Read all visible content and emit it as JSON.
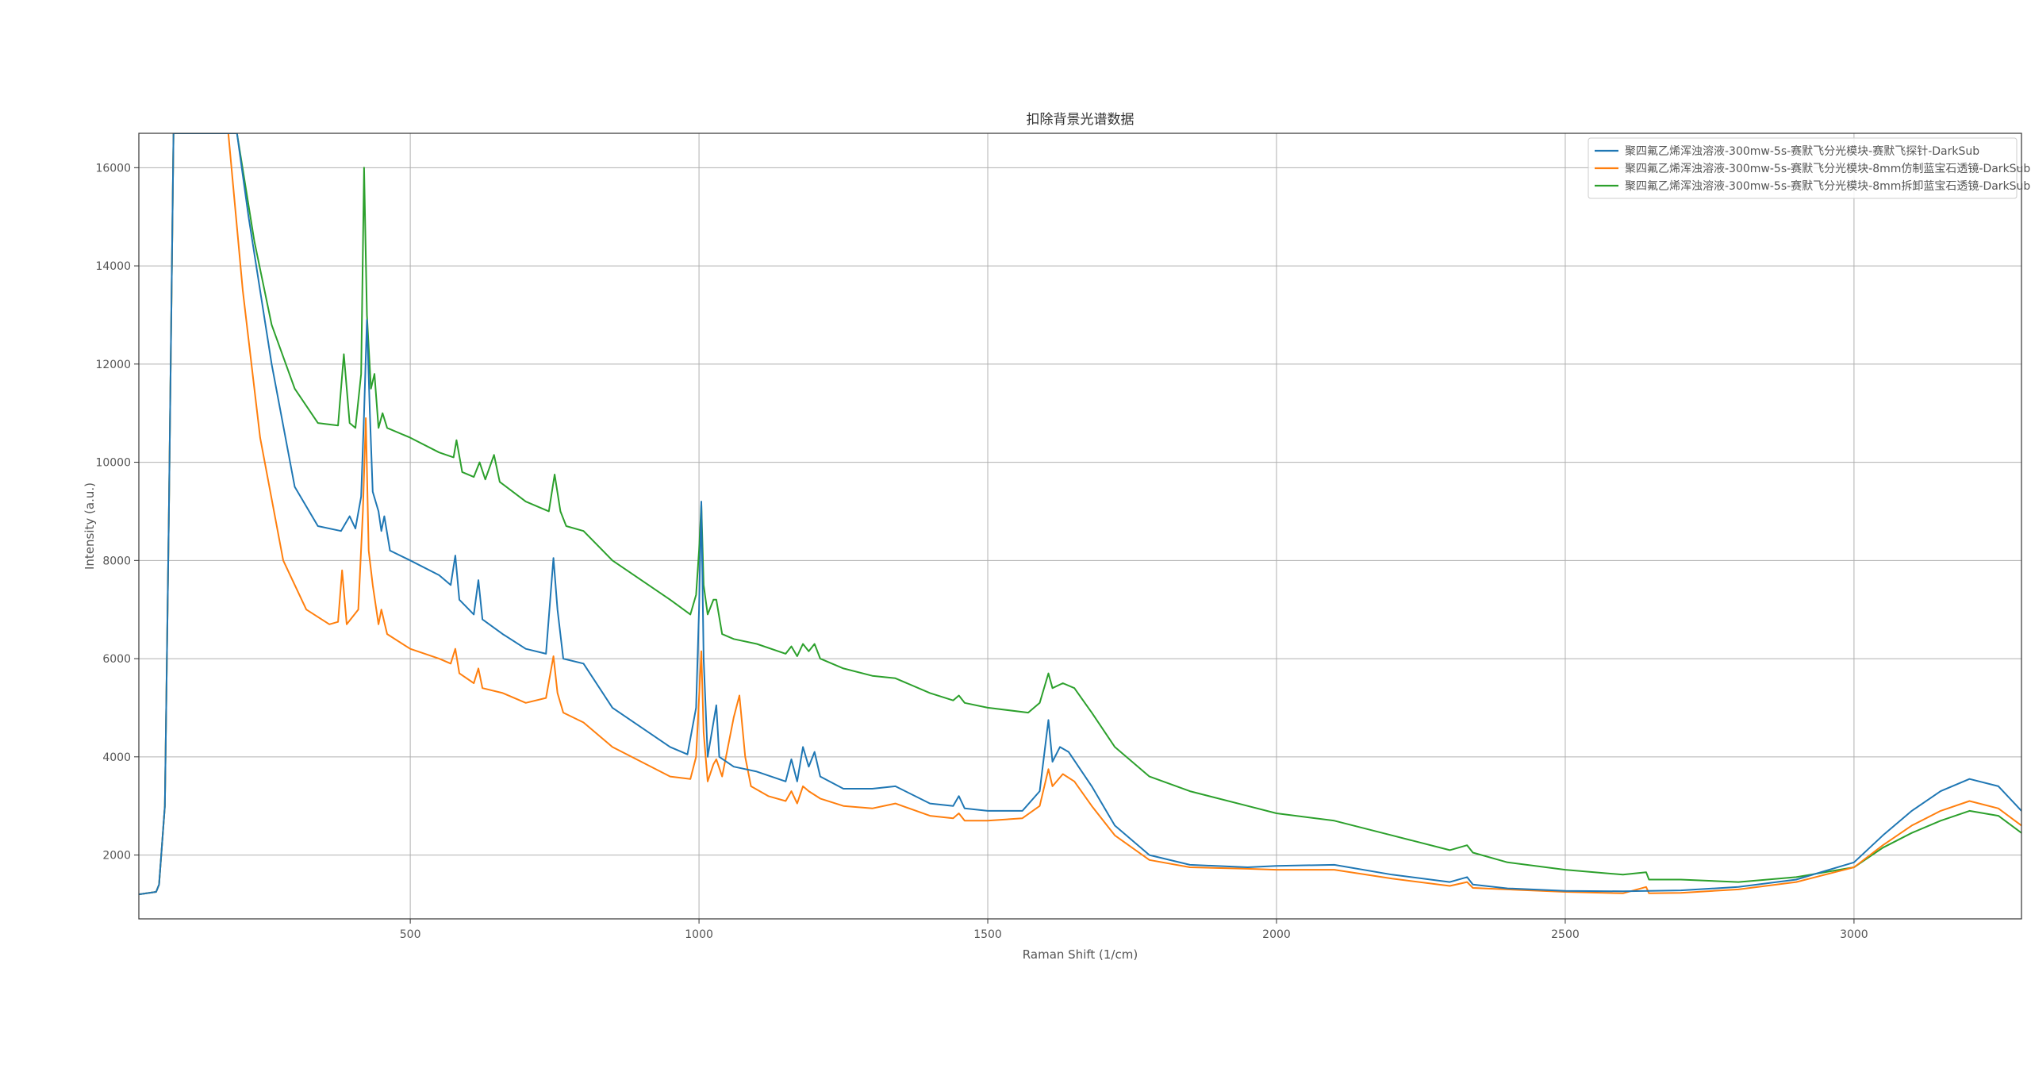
{
  "chart_data": {
    "type": "line",
    "title": "扣除背景光谱数据",
    "xlabel": "Raman Shift (1/cm)",
    "ylabel": "Intensity (a.u.)",
    "xlim": [
      30,
      3290
    ],
    "ylim": [
      700,
      16700
    ],
    "xticks": [
      500,
      1000,
      1500,
      2000,
      2500,
      3000
    ],
    "yticks": [
      2000,
      4000,
      6000,
      8000,
      10000,
      12000,
      14000,
      16000
    ],
    "grid": true,
    "legend_position": "top-right",
    "series": [
      {
        "name": "聚四氟乙烯浑浊溶液-300mw-5s-赛默飞分光模块-赛默飞探针-DarkSub",
        "color": "#1f77b4",
        "points": [
          [
            30,
            1200
          ],
          [
            60,
            1250
          ],
          [
            65,
            1400
          ],
          [
            75,
            3000
          ],
          [
            82,
            9000
          ],
          [
            90,
            16700
          ],
          [
            200,
            16700
          ],
          [
            220,
            15000
          ],
          [
            260,
            12000
          ],
          [
            300,
            9500
          ],
          [
            340,
            8700
          ],
          [
            380,
            8600
          ],
          [
            395,
            8900
          ],
          [
            405,
            8650
          ],
          [
            415,
            9300
          ],
          [
            420,
            11000
          ],
          [
            425,
            12900
          ],
          [
            430,
            11000
          ],
          [
            435,
            9400
          ],
          [
            445,
            9000
          ],
          [
            450,
            8600
          ],
          [
            455,
            8900
          ],
          [
            465,
            8200
          ],
          [
            500,
            8000
          ],
          [
            550,
            7700
          ],
          [
            570,
            7500
          ],
          [
            578,
            8100
          ],
          [
            585,
            7200
          ],
          [
            610,
            6900
          ],
          [
            618,
            7600
          ],
          [
            625,
            6800
          ],
          [
            660,
            6500
          ],
          [
            700,
            6200
          ],
          [
            735,
            6100
          ],
          [
            748,
            8050
          ],
          [
            755,
            7000
          ],
          [
            765,
            6000
          ],
          [
            800,
            5900
          ],
          [
            850,
            5000
          ],
          [
            900,
            4600
          ],
          [
            950,
            4200
          ],
          [
            980,
            4050
          ],
          [
            995,
            5000
          ],
          [
            1000,
            7000
          ],
          [
            1004,
            9200
          ],
          [
            1008,
            6000
          ],
          [
            1015,
            4000
          ],
          [
            1030,
            5050
          ],
          [
            1035,
            4000
          ],
          [
            1060,
            3800
          ],
          [
            1100,
            3700
          ],
          [
            1150,
            3500
          ],
          [
            1160,
            3950
          ],
          [
            1170,
            3500
          ],
          [
            1180,
            4200
          ],
          [
            1190,
            3800
          ],
          [
            1200,
            4100
          ],
          [
            1210,
            3600
          ],
          [
            1250,
            3350
          ],
          [
            1300,
            3350
          ],
          [
            1340,
            3400
          ],
          [
            1400,
            3050
          ],
          [
            1440,
            3000
          ],
          [
            1450,
            3200
          ],
          [
            1460,
            2950
          ],
          [
            1500,
            2900
          ],
          [
            1560,
            2900
          ],
          [
            1590,
            3300
          ],
          [
            1605,
            4750
          ],
          [
            1612,
            3900
          ],
          [
            1625,
            4200
          ],
          [
            1640,
            4100
          ],
          [
            1680,
            3400
          ],
          [
            1720,
            2600
          ],
          [
            1780,
            2000
          ],
          [
            1850,
            1800
          ],
          [
            1950,
            1750
          ],
          [
            2000,
            1780
          ],
          [
            2100,
            1800
          ],
          [
            2200,
            1600
          ],
          [
            2300,
            1450
          ],
          [
            2330,
            1550
          ],
          [
            2340,
            1400
          ],
          [
            2400,
            1320
          ],
          [
            2500,
            1270
          ],
          [
            2600,
            1260
          ],
          [
            2700,
            1280
          ],
          [
            2800,
            1350
          ],
          [
            2900,
            1500
          ],
          [
            3000,
            1850
          ],
          [
            3050,
            2400
          ],
          [
            3100,
            2900
          ],
          [
            3150,
            3300
          ],
          [
            3200,
            3550
          ],
          [
            3250,
            3400
          ],
          [
            3290,
            2900
          ]
        ]
      },
      {
        "name": "聚四氟乙烯浑浊溶液-300mw-5s-赛默飞分光模块-8mm仿制蓝宝石透镜-DarkSub",
        "color": "#ff7f0e",
        "points": [
          [
            30,
            1200
          ],
          [
            60,
            1250
          ],
          [
            65,
            1400
          ],
          [
            75,
            3000
          ],
          [
            82,
            9000
          ],
          [
            90,
            16700
          ],
          [
            185,
            16700
          ],
          [
            210,
            13500
          ],
          [
            240,
            10500
          ],
          [
            280,
            8000
          ],
          [
            320,
            7000
          ],
          [
            360,
            6700
          ],
          [
            375,
            6750
          ],
          [
            382,
            7800
          ],
          [
            390,
            6700
          ],
          [
            410,
            7000
          ],
          [
            418,
            9000
          ],
          [
            423,
            10900
          ],
          [
            428,
            8200
          ],
          [
            435,
            7500
          ],
          [
            445,
            6700
          ],
          [
            450,
            7000
          ],
          [
            460,
            6500
          ],
          [
            500,
            6200
          ],
          [
            550,
            6000
          ],
          [
            570,
            5900
          ],
          [
            578,
            6200
          ],
          [
            585,
            5700
          ],
          [
            610,
            5500
          ],
          [
            618,
            5800
          ],
          [
            625,
            5400
          ],
          [
            660,
            5300
          ],
          [
            700,
            5100
          ],
          [
            735,
            5200
          ],
          [
            748,
            6050
          ],
          [
            755,
            5300
          ],
          [
            765,
            4900
          ],
          [
            800,
            4700
          ],
          [
            850,
            4200
          ],
          [
            900,
            3900
          ],
          [
            950,
            3600
          ],
          [
            985,
            3550
          ],
          [
            995,
            4000
          ],
          [
            1000,
            5200
          ],
          [
            1004,
            6150
          ],
          [
            1008,
            4500
          ],
          [
            1015,
            3500
          ],
          [
            1025,
            3850
          ],
          [
            1030,
            3950
          ],
          [
            1040,
            3600
          ],
          [
            1060,
            4800
          ],
          [
            1070,
            5250
          ],
          [
            1080,
            4000
          ],
          [
            1090,
            3400
          ],
          [
            1120,
            3200
          ],
          [
            1150,
            3100
          ],
          [
            1160,
            3300
          ],
          [
            1170,
            3050
          ],
          [
            1180,
            3400
          ],
          [
            1190,
            3300
          ],
          [
            1210,
            3150
          ],
          [
            1250,
            3000
          ],
          [
            1300,
            2950
          ],
          [
            1340,
            3050
          ],
          [
            1400,
            2800
          ],
          [
            1440,
            2750
          ],
          [
            1450,
            2850
          ],
          [
            1460,
            2700
          ],
          [
            1500,
            2700
          ],
          [
            1560,
            2750
          ],
          [
            1590,
            3000
          ],
          [
            1605,
            3750
          ],
          [
            1612,
            3400
          ],
          [
            1630,
            3650
          ],
          [
            1650,
            3500
          ],
          [
            1680,
            3000
          ],
          [
            1720,
            2400
          ],
          [
            1780,
            1900
          ],
          [
            1850,
            1750
          ],
          [
            1950,
            1720
          ],
          [
            2000,
            1700
          ],
          [
            2100,
            1700
          ],
          [
            2200,
            1520
          ],
          [
            2300,
            1370
          ],
          [
            2330,
            1450
          ],
          [
            2340,
            1330
          ],
          [
            2400,
            1300
          ],
          [
            2500,
            1250
          ],
          [
            2600,
            1220
          ],
          [
            2640,
            1350
          ],
          [
            2645,
            1220
          ],
          [
            2700,
            1230
          ],
          [
            2800,
            1300
          ],
          [
            2900,
            1450
          ],
          [
            3000,
            1750
          ],
          [
            3050,
            2200
          ],
          [
            3100,
            2600
          ],
          [
            3150,
            2900
          ],
          [
            3200,
            3100
          ],
          [
            3250,
            2950
          ],
          [
            3290,
            2600
          ]
        ]
      },
      {
        "name": "聚四氟乙烯浑浊溶液-300mw-5s-赛默飞分光模块-8mm拆卸蓝宝石透镜-DarkSub",
        "color": "#2ca02c",
        "points": [
          [
            30,
            1200
          ],
          [
            60,
            1250
          ],
          [
            65,
            1400
          ],
          [
            75,
            3000
          ],
          [
            82,
            9000
          ],
          [
            90,
            16700
          ],
          [
            200,
            16700
          ],
          [
            230,
            14500
          ],
          [
            260,
            12800
          ],
          [
            300,
            11500
          ],
          [
            340,
            10800
          ],
          [
            375,
            10750
          ],
          [
            385,
            12200
          ],
          [
            395,
            10800
          ],
          [
            405,
            10700
          ],
          [
            415,
            11800
          ],
          [
            420,
            16000
          ],
          [
            425,
            13000
          ],
          [
            432,
            11500
          ],
          [
            438,
            11800
          ],
          [
            445,
            10700
          ],
          [
            452,
            11000
          ],
          [
            460,
            10700
          ],
          [
            500,
            10500
          ],
          [
            550,
            10200
          ],
          [
            575,
            10100
          ],
          [
            580,
            10450
          ],
          [
            590,
            9800
          ],
          [
            610,
            9700
          ],
          [
            620,
            10000
          ],
          [
            630,
            9650
          ],
          [
            645,
            10150
          ],
          [
            655,
            9600
          ],
          [
            700,
            9200
          ],
          [
            740,
            9000
          ],
          [
            750,
            9750
          ],
          [
            760,
            9000
          ],
          [
            770,
            8700
          ],
          [
            800,
            8600
          ],
          [
            850,
            8000
          ],
          [
            900,
            7600
          ],
          [
            950,
            7200
          ],
          [
            985,
            6900
          ],
          [
            995,
            7300
          ],
          [
            1000,
            8200
          ],
          [
            1004,
            9150
          ],
          [
            1008,
            7500
          ],
          [
            1015,
            6900
          ],
          [
            1025,
            7200
          ],
          [
            1030,
            7200
          ],
          [
            1040,
            6500
          ],
          [
            1060,
            6400
          ],
          [
            1100,
            6300
          ],
          [
            1150,
            6100
          ],
          [
            1160,
            6250
          ],
          [
            1170,
            6050
          ],
          [
            1180,
            6300
          ],
          [
            1190,
            6150
          ],
          [
            1200,
            6300
          ],
          [
            1210,
            6000
          ],
          [
            1250,
            5800
          ],
          [
            1300,
            5650
          ],
          [
            1340,
            5600
          ],
          [
            1400,
            5300
          ],
          [
            1440,
            5150
          ],
          [
            1450,
            5250
          ],
          [
            1460,
            5100
          ],
          [
            1500,
            5000
          ],
          [
            1570,
            4900
          ],
          [
            1590,
            5100
          ],
          [
            1605,
            5700
          ],
          [
            1612,
            5400
          ],
          [
            1630,
            5500
          ],
          [
            1650,
            5400
          ],
          [
            1680,
            4900
          ],
          [
            1720,
            4200
          ],
          [
            1780,
            3600
          ],
          [
            1850,
            3300
          ],
          [
            1950,
            3000
          ],
          [
            2000,
            2850
          ],
          [
            2100,
            2700
          ],
          [
            2200,
            2400
          ],
          [
            2300,
            2100
          ],
          [
            2330,
            2200
          ],
          [
            2340,
            2050
          ],
          [
            2400,
            1850
          ],
          [
            2500,
            1700
          ],
          [
            2600,
            1600
          ],
          [
            2640,
            1650
          ],
          [
            2645,
            1500
          ],
          [
            2700,
            1500
          ],
          [
            2800,
            1450
          ],
          [
            2900,
            1550
          ],
          [
            3000,
            1750
          ],
          [
            3050,
            2150
          ],
          [
            3100,
            2450
          ],
          [
            3150,
            2700
          ],
          [
            3200,
            2900
          ],
          [
            3250,
            2800
          ],
          [
            3290,
            2450
          ]
        ]
      }
    ]
  }
}
